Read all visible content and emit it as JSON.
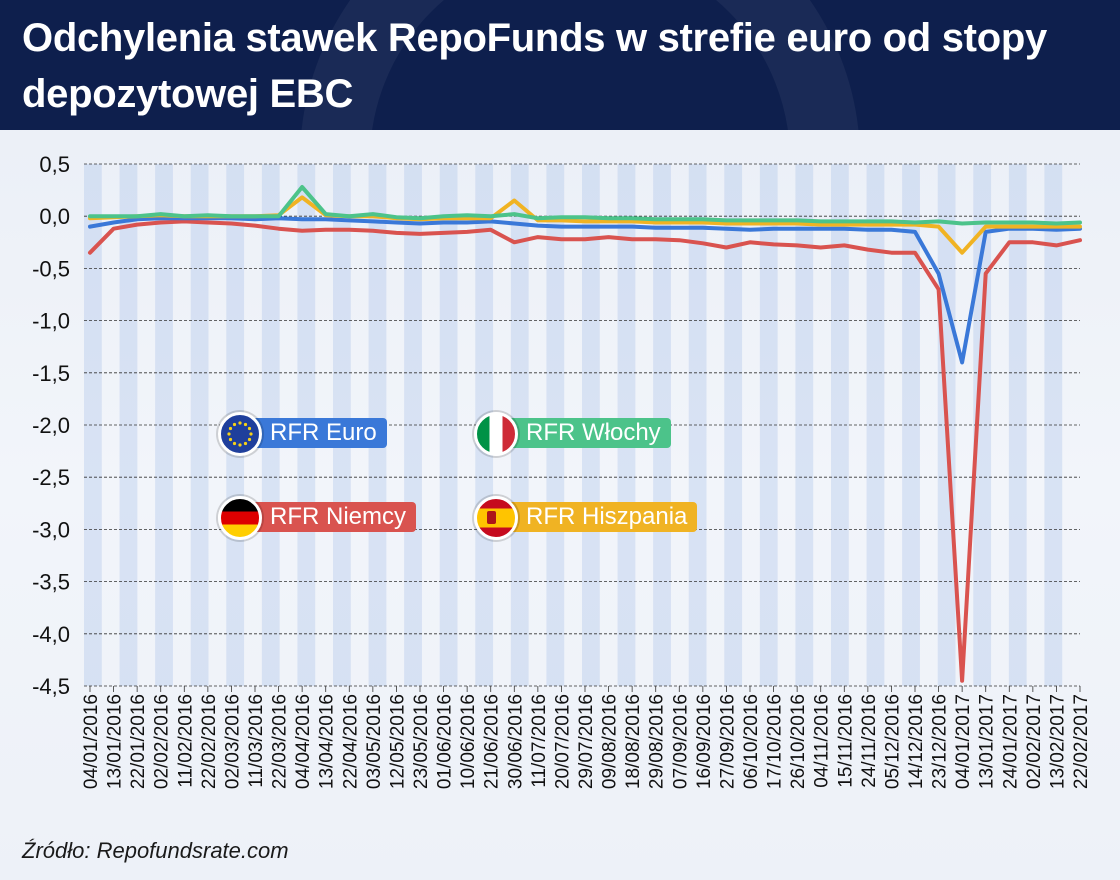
{
  "title": "Odchylenia stawek RepoFunds w strefie euro od stopy depozytowej EBC",
  "source": "Źródło: Repofundsrate.com",
  "colors": {
    "euro": "#3a78d8",
    "wlochy": "#4cc38a",
    "niemcy": "#d9534f",
    "hiszpania": "#f0b323",
    "header": "#0e1f4d"
  },
  "legend": [
    {
      "label": "RFR Euro",
      "flag": "eu-flag-icon",
      "color": "#3a78d8"
    },
    {
      "label": "RFR Włochy",
      "flag": "italy-flag-icon",
      "color": "#4cc38a"
    },
    {
      "label": "RFR Niemcy",
      "flag": "germany-flag-icon",
      "color": "#d9534f"
    },
    {
      "label": "RFR Hiszpania",
      "flag": "spain-flag-icon",
      "color": "#f0b323"
    }
  ],
  "chart_data": {
    "type": "line",
    "title": "Odchylenia stawek RepoFunds w strefie euro od stopy depozytowej EBC",
    "xlabel": "",
    "ylabel": "",
    "ylim": [
      -4.5,
      0.5
    ],
    "yticks": [
      "0,5",
      "0,0",
      "-0,5",
      "-1,0",
      "-1,5",
      "-2,0",
      "-2,5",
      "-3,0",
      "-3,5",
      "-4,0",
      "-4,5"
    ],
    "ytick_values": [
      0.5,
      0.0,
      -0.5,
      -1.0,
      -1.5,
      -2.0,
      -2.5,
      -3.0,
      -3.5,
      -4.0,
      -4.5
    ],
    "grid": true,
    "x_tick_labels": [
      "04/01/2016",
      "13/01/2016",
      "22/01/2016",
      "02/02/2016",
      "11/02/2016",
      "22/02/2016",
      "02/03/2016",
      "11/03/2016",
      "22/03/2016",
      "04/04/2016",
      "13/04/2016",
      "22/04/2016",
      "03/05/2016",
      "12/05/2016",
      "23/05/2016",
      "01/06/2016",
      "10/06/2016",
      "21/06/2016",
      "30/06/2016",
      "11/07/2016",
      "20/07/2016",
      "29/07/2016",
      "09/08/2016",
      "18/08/2016",
      "29/08/2016",
      "07/09/2016",
      "16/09/2016",
      "27/09/2016",
      "06/10/2016",
      "17/10/2016",
      "26/10/2016",
      "04/11/2016",
      "15/11/2016",
      "24/11/2016",
      "05/12/2016",
      "14/12/2016",
      "23/12/2016",
      "04/01/2017",
      "13/01/2017",
      "24/01/2017",
      "02/02/2017",
      "13/02/2017",
      "22/02/2017"
    ],
    "series": [
      {
        "name": "RFR Euro",
        "color": "#3a78d8",
        "values": [
          -0.1,
          -0.06,
          -0.03,
          -0.02,
          -0.02,
          -0.02,
          -0.02,
          -0.03,
          -0.02,
          -0.03,
          -0.03,
          -0.04,
          -0.05,
          -0.06,
          -0.07,
          -0.06,
          -0.06,
          -0.05,
          -0.07,
          -0.09,
          -0.1,
          -0.1,
          -0.1,
          -0.1,
          -0.11,
          -0.11,
          -0.11,
          -0.12,
          -0.13,
          -0.12,
          -0.12,
          -0.12,
          -0.12,
          -0.13,
          -0.13,
          -0.15,
          -0.55,
          -1.4,
          -0.15,
          -0.12,
          -0.12,
          -0.13,
          -0.12
        ]
      },
      {
        "name": "RFR Włochy",
        "color": "#4cc38a",
        "values": [
          0.0,
          0.0,
          0.0,
          0.02,
          0.0,
          0.01,
          0.0,
          0.0,
          0.0,
          0.28,
          0.02,
          0.0,
          0.02,
          -0.01,
          -0.02,
          0.0,
          0.01,
          0.0,
          0.02,
          -0.02,
          -0.01,
          -0.01,
          -0.02,
          -0.02,
          -0.03,
          -0.03,
          -0.03,
          -0.04,
          -0.04,
          -0.04,
          -0.04,
          -0.05,
          -0.05,
          -0.05,
          -0.05,
          -0.06,
          -0.05,
          -0.07,
          -0.06,
          -0.06,
          -0.06,
          -0.07,
          -0.06
        ]
      },
      {
        "name": "RFR Niemcy",
        "color": "#d9534f",
        "values": [
          -0.35,
          -0.12,
          -0.08,
          -0.06,
          -0.05,
          -0.06,
          -0.07,
          -0.09,
          -0.12,
          -0.14,
          -0.13,
          -0.13,
          -0.14,
          -0.16,
          -0.17,
          -0.16,
          -0.15,
          -0.13,
          -0.25,
          -0.2,
          -0.22,
          -0.22,
          -0.2,
          -0.22,
          -0.22,
          -0.23,
          -0.26,
          -0.3,
          -0.25,
          -0.27,
          -0.28,
          -0.3,
          -0.28,
          -0.32,
          -0.35,
          -0.35,
          -0.7,
          -4.45,
          -0.55,
          -0.25,
          -0.25,
          -0.28,
          -0.23
        ]
      },
      {
        "name": "RFR Hiszpania",
        "color": "#f0b323",
        "values": [
          -0.02,
          -0.01,
          0.0,
          0.01,
          0.0,
          0.0,
          0.0,
          0.0,
          0.01,
          0.18,
          0.01,
          0.0,
          0.0,
          -0.02,
          -0.03,
          -0.02,
          -0.02,
          -0.02,
          0.15,
          -0.04,
          -0.04,
          -0.05,
          -0.05,
          -0.05,
          -0.06,
          -0.06,
          -0.06,
          -0.07,
          -0.07,
          -0.07,
          -0.07,
          -0.08,
          -0.08,
          -0.08,
          -0.08,
          -0.08,
          -0.1,
          -0.35,
          -0.1,
          -0.1,
          -0.1,
          -0.1,
          -0.1
        ]
      }
    ]
  }
}
